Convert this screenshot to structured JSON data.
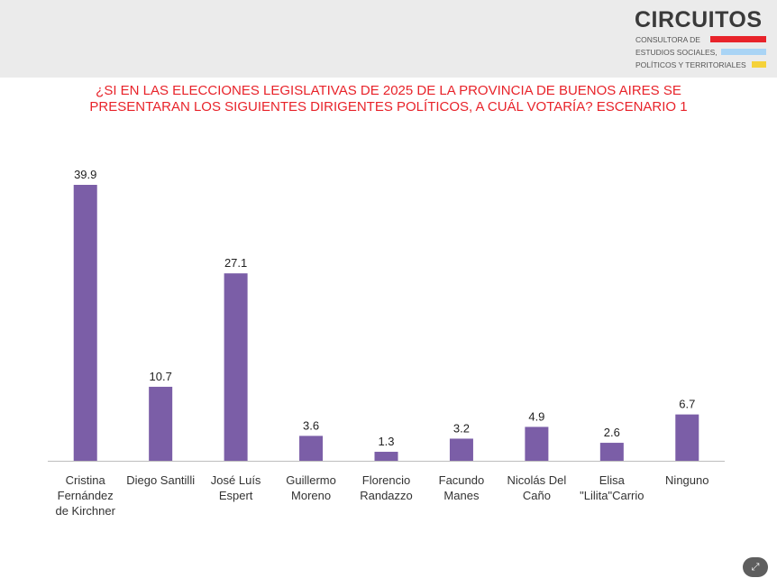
{
  "logo": {
    "name": "CIRCUITOS",
    "lines": [
      "CONSULTORA DE",
      "ESTUDIOS SOCIALES,",
      "POLÍTICOS Y TERRITORIALES"
    ],
    "colors": [
      "#e8232a",
      "#a9d4f5",
      "#f5d23a"
    ]
  },
  "title": {
    "line1": "¿SI EN LAS ELECCIONES LEGISLATIVAS DE 2025 DE LA PROVINCIA DE BUENOS AIRES SE",
    "line2": "PRESENTARAN LOS SIGUIENTES DIRIGENTES POLÍTICOS, A CUÁL VOTARÍA? ESCENARIO 1"
  },
  "colors": {
    "bar": "#7b5ea7",
    "title": "#e8232a",
    "axis": "#bdbdbd"
  },
  "chart_data": {
    "type": "bar",
    "categories": [
      [
        "Cristina",
        "Fernández",
        "de Kirchner"
      ],
      [
        "Diego Santilli"
      ],
      [
        "José Luís",
        "Espert"
      ],
      [
        "Guillermo",
        "Moreno"
      ],
      [
        "Florencio",
        "Randazzo"
      ],
      [
        "Facundo",
        "Manes"
      ],
      [
        "Nicolás Del",
        "Caño"
      ],
      [
        "Elisa",
        "\"Lilita\"Carrio"
      ],
      [
        "Ninguno"
      ]
    ],
    "values": [
      39.9,
      10.7,
      27.1,
      3.6,
      1.3,
      3.2,
      4.9,
      2.6,
      6.7
    ],
    "value_labels": [
      "39.9",
      "10.7",
      "27.1",
      "3.6",
      "1.3",
      "3.2",
      "4.9",
      "2.6",
      "6.7"
    ],
    "ylim": [
      0,
      40
    ],
    "grid": false,
    "legend": "none"
  },
  "corner_icon": "expand-icon"
}
